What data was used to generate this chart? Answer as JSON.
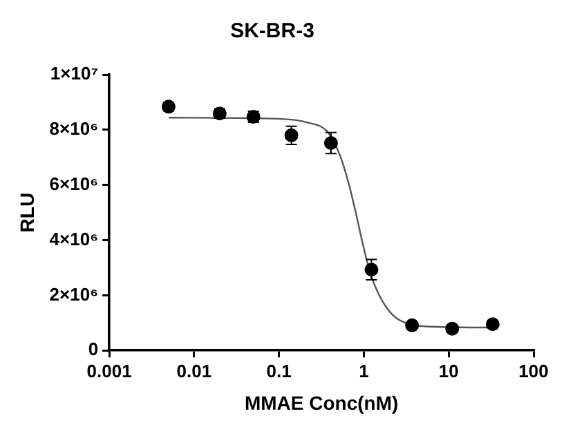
{
  "chart_data": {
    "type": "scatter",
    "title": "SK-BR-3",
    "xlabel": "MMAE Conc(nM)",
    "ylabel": "RLU",
    "log": "x",
    "xlim": [
      0.001,
      100
    ],
    "xticks": [
      0.001,
      0.01,
      0.1,
      1,
      10,
      100
    ],
    "ylim": [
      0,
      10000000
    ],
    "yticks": [
      0,
      {
        "value": 2000000,
        "label": "2×10⁶"
      },
      {
        "value": 4000000,
        "label": "4×10⁶"
      },
      {
        "value": 6000000,
        "label": "6×10⁶"
      },
      {
        "value": 8000000,
        "label": "8×10⁶"
      },
      {
        "value": 10000000,
        "label": "1×10⁷"
      }
    ],
    "series": [
      {
        "color": "#000000",
        "marker": "circle",
        "x": [
          0.005,
          0.02,
          0.05,
          0.14,
          0.41,
          1.23,
          3.7,
          11,
          33
        ],
        "values": [
          8840000,
          8590000,
          8470000,
          7800000,
          7520000,
          2930000,
          910000,
          790000,
          950000
        ],
        "errors": [
          150000,
          170000,
          200000,
          330000,
          380000,
          370000,
          null,
          null,
          null
        ]
      },
      {
        "type": "line",
        "color": "#555555",
        "marker": "none",
        "x": [
          0.005,
          0.097,
          0.219,
          0.377,
          0.53,
          0.65,
          0.79,
          0.97,
          1.19,
          1.46,
          1.92,
          2.51,
          3.77,
          8.5,
          33
        ],
        "values": [
          8440000,
          8400000,
          8260000,
          7910000,
          7030000,
          6150000,
          5100000,
          3870000,
          2810000,
          2110000,
          1490000,
          1140000,
          930000,
          850000,
          830000
        ]
      }
    ]
  }
}
